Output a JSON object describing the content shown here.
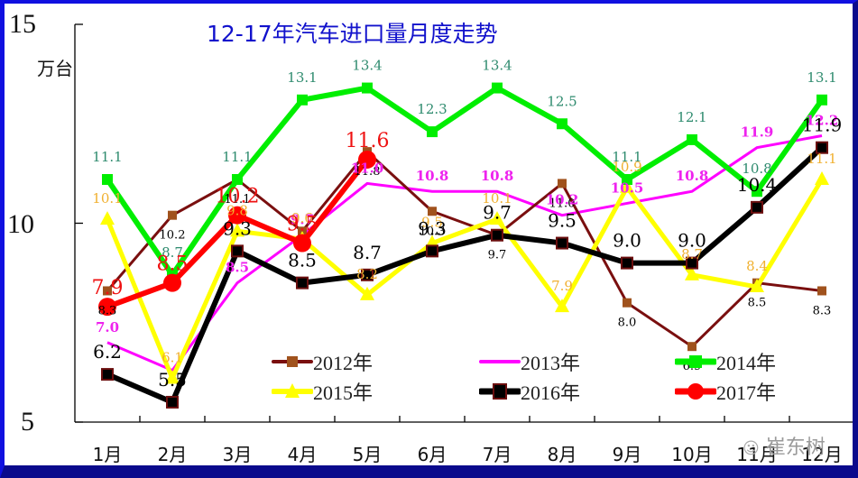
{
  "chart_data": {
    "type": "line",
    "title": "12-17年汽车进口量月度走势",
    "xlabel": "",
    "ylabel": "万台",
    "ylim": [
      5,
      15
    ],
    "yticks": [
      "5",
      "10",
      "15"
    ],
    "grid": false,
    "legend_position": "lower-center inside plot",
    "categories": [
      "1月",
      "2月",
      "3月",
      "4月",
      "5月",
      "6月",
      "7月",
      "8月",
      "9月",
      "10月",
      "11月",
      "12月"
    ],
    "series": [
      {
        "name": "2012年",
        "color": "#7a0f0f",
        "marker": "#a0521d",
        "marker_shape": "square-small",
        "values": [
          8.3,
          10.2,
          11.1,
          9.8,
          11.8,
          10.3,
          9.7,
          11.0,
          8.0,
          6.9,
          8.5,
          8.3
        ],
        "labels": [
          "8.3",
          "10.2",
          "11.1",
          "",
          "11.8",
          "10.3",
          "9.7",
          "11.0",
          "8.0",
          "6.9",
          "8.5",
          "8.3"
        ],
        "label_color": "#000000"
      },
      {
        "name": "2013年",
        "color": "#ff00ff",
        "marker": null,
        "marker_shape": "none",
        "values": [
          7.0,
          6.3,
          8.5,
          9.7,
          11.0,
          10.8,
          10.8,
          10.2,
          10.5,
          10.8,
          11.9,
          12.2
        ],
        "labels": [
          "7.0",
          "",
          "8.5",
          "9.7",
          "11.0",
          "10.8",
          "10.8",
          "10.2",
          "10.5",
          "10.8",
          "11.9",
          "12.2"
        ],
        "label_color": "#ee22ee"
      },
      {
        "name": "2014年",
        "color": "#00ee00",
        "marker": "#00ee00",
        "marker_shape": "square",
        "values": [
          11.1,
          8.7,
          11.1,
          13.1,
          13.4,
          12.3,
          13.4,
          12.5,
          11.1,
          12.1,
          10.8,
          13.1
        ],
        "labels": [
          "11.1",
          "8.7",
          "11.1",
          "13.1",
          "13.4",
          "12.3",
          "13.4",
          "12.5",
          "11.1",
          "12.1",
          "10.8",
          "13.1"
        ],
        "label_color": "#2e8b6e"
      },
      {
        "name": "2015年",
        "color": "#ffff00",
        "marker": "#ffff00",
        "marker_shape": "triangle",
        "values": [
          10.1,
          6.1,
          9.8,
          9.6,
          8.2,
          9.5,
          10.1,
          7.9,
          10.9,
          8.7,
          8.4,
          11.1
        ],
        "labels": [
          "10.1",
          "6.1",
          "9.8",
          "9.6",
          "8.2",
          "9.5",
          "10.1",
          "7.9",
          "10.9",
          "8.7",
          "8.4",
          "11.1"
        ],
        "label_color": "#f0b030"
      },
      {
        "name": "2016年",
        "color": "#000000",
        "marker": "#000000",
        "marker_shape": "square-outlined",
        "values": [
          6.2,
          5.5,
          9.3,
          8.5,
          8.7,
          9.3,
          9.7,
          9.5,
          9.0,
          9.0,
          10.4,
          11.9
        ],
        "labels": [
          "6.2",
          "5.5",
          "9.3",
          "8.5",
          "8.7",
          "9.3",
          "9.7",
          "9.5",
          "9.0",
          "9.0",
          "10.4",
          "11.9"
        ],
        "label_color": "#000000"
      },
      {
        "name": "2017年",
        "color": "#ff0000",
        "marker": "#ff0000",
        "marker_shape": "circle",
        "values": [
          7.9,
          8.5,
          10.2,
          9.5,
          11.6
        ],
        "labels": [
          "7.9",
          "8.5",
          "10.2",
          "9.5",
          "11.6"
        ],
        "label_color": "#ee1111"
      }
    ]
  },
  "watermark": "崔东树"
}
